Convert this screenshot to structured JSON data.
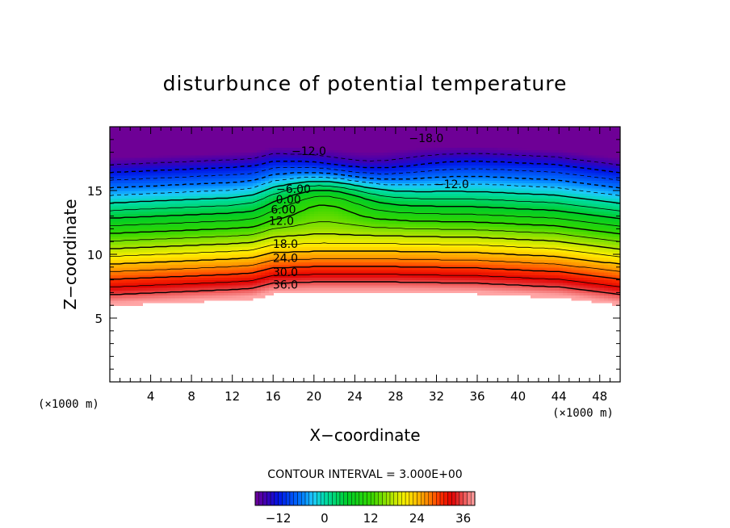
{
  "chart_data": {
    "type": "heatmap",
    "title": "disturbunce of potential temperature",
    "xlabel": "X−coordinate",
    "ylabel": "Z−coordinate",
    "x_unit": "(×1000 m)",
    "y_unit": "(×1000 m)",
    "xlim": [
      0,
      50
    ],
    "ylim": [
      0,
      20
    ],
    "x_ticks": [
      4,
      8,
      12,
      16,
      20,
      24,
      28,
      32,
      36,
      40,
      44,
      48
    ],
    "x_tick_labels": [
      "4",
      "8",
      "12",
      "16",
      "20",
      "24",
      "28",
      "32",
      "36",
      "40",
      "44",
      "48"
    ],
    "y_ticks": [
      5,
      10,
      15
    ],
    "y_tick_labels": [
      "5",
      "10",
      "15"
    ],
    "contour_interval_text": "CONTOUR INTERVAL = 3.000E+00",
    "contour_labels": [
      {
        "text": "−18.0",
        "x": 31,
        "z": 18.8
      },
      {
        "text": "−12.0",
        "x": 19.5,
        "z": 17.8
      },
      {
        "text": "−12.0",
        "x": 33.5,
        "z": 15.2
      },
      {
        "text": "−6.00",
        "x": 18,
        "z": 14.8
      },
      {
        "text": "0.00",
        "x": 17.5,
        "z": 14.0
      },
      {
        "text": "6.00",
        "x": 17,
        "z": 13.2
      },
      {
        "text": "12.0",
        "x": 16.8,
        "z": 12.3
      },
      {
        "text": "18.0",
        "x": 17.2,
        "z": 10.5
      },
      {
        "text": "24.0",
        "x": 17.2,
        "z": 9.4
      },
      {
        "text": "30.0",
        "x": 17.2,
        "z": 8.3
      },
      {
        "text": "36.0",
        "x": 17.2,
        "z": 7.3
      }
    ],
    "colorbar": {
      "range": [
        -18,
        39
      ],
      "ticks": [
        -12,
        0,
        12,
        24,
        36
      ],
      "tick_labels": [
        "−12",
        "0",
        "12",
        "24",
        "36"
      ]
    },
    "field_summary": {
      "levels_min": -18,
      "levels_max": 39,
      "surface_height_km": [
        [
          0,
          6.0
        ],
        [
          12,
          6.4
        ],
        [
          14,
          6.5
        ],
        [
          16,
          6.9
        ],
        [
          20,
          7.0
        ],
        [
          28,
          7.0
        ],
        [
          36,
          6.9
        ],
        [
          44,
          6.6
        ],
        [
          50,
          6.0
        ]
      ],
      "disturbed_region_x": [
        14,
        28
      ]
    }
  }
}
